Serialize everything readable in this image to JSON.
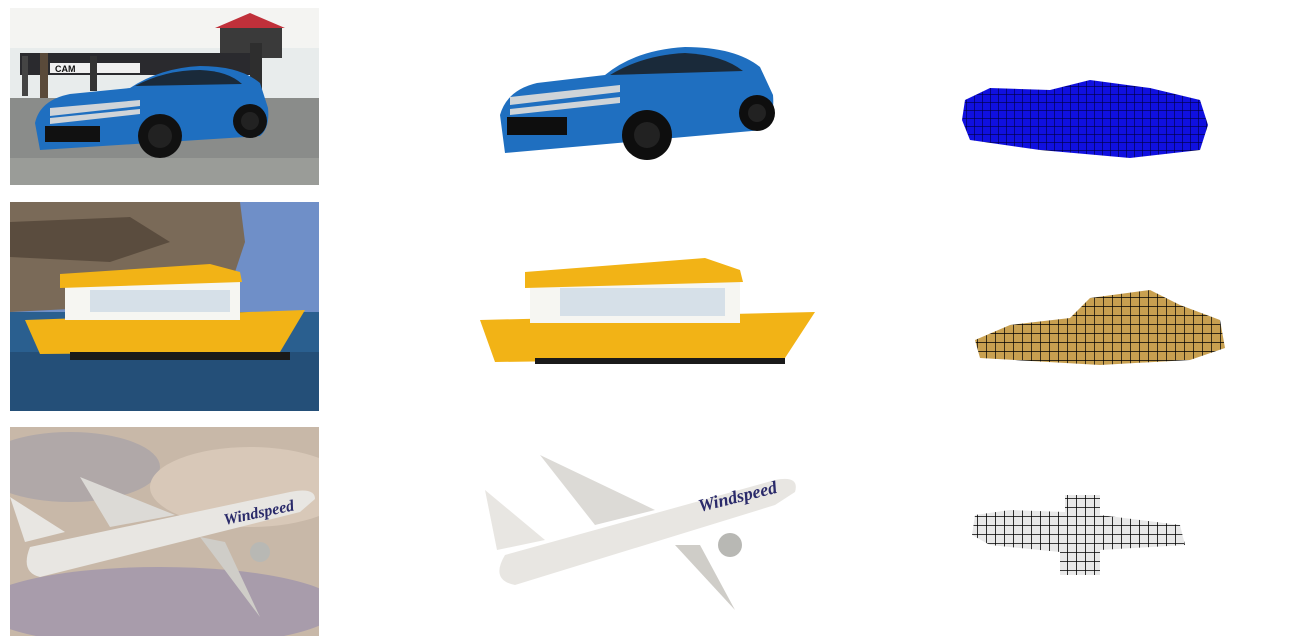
{
  "figure": {
    "rows": [
      {
        "object": "car",
        "photo": {
          "text": "CAM",
          "caption_icon": "car-photo"
        },
        "segmentation": {
          "icon": "car-cutout"
        },
        "voxel": {
          "icon": "car-voxels",
          "color": "#1010e0"
        }
      },
      {
        "object": "boat",
        "photo": {
          "icon": "boat-photo"
        },
        "segmentation": {
          "icon": "boat-cutout"
        },
        "voxel": {
          "icon": "boat-voxels",
          "color": "#c8a050"
        }
      },
      {
        "object": "airplane",
        "photo": {
          "livery": "Windspeed",
          "icon": "airplane-photo"
        },
        "segmentation": {
          "livery": "Windspeed",
          "icon": "airplane-cutout"
        },
        "voxel": {
          "icon": "airplane-voxels",
          "color": "#e8e8e8"
        }
      }
    ],
    "colors": {
      "car_blue": "#1f6fc0",
      "boat_yellow": "#f2b316",
      "sea": "#2a5f8f",
      "sky": "#c8b8a8"
    }
  }
}
